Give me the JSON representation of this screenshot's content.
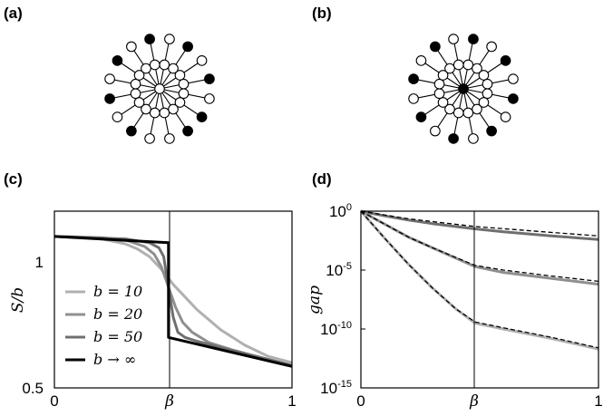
{
  "panels": {
    "a": {
      "label": "(a)",
      "filled_indices": [
        1,
        3,
        5,
        6,
        9,
        11,
        13,
        15
      ],
      "center_filled": false
    },
    "b": {
      "label": "(b)",
      "filled_indices": [
        0,
        2,
        4,
        6,
        8,
        10,
        12,
        14
      ],
      "center_filled": true
    },
    "c": {
      "label": "(c)"
    },
    "d": {
      "label": "(d)"
    }
  },
  "chart_data": [
    {
      "type": "line",
      "panel": "c",
      "xlabel": "β",
      "ylabel": "S/b",
      "xlim": [
        0,
        1
      ],
      "ylim": [
        0.5,
        1.2
      ],
      "x_ticks": [
        "0",
        "1"
      ],
      "y_ticks": [
        "0.5",
        "1"
      ],
      "x_mid_tick": "β",
      "transition_x": 0.48,
      "legend": [
        {
          "text": "b = 10",
          "color": "#b0b0b0"
        },
        {
          "text": "b = 20",
          "color": "#8f8f8f"
        },
        {
          "text": "b = 50",
          "color": "#6f6f6f"
        },
        {
          "text": "b → ∞",
          "color": "#000000"
        }
      ],
      "series": [
        {
          "name": "b = 10",
          "color": "#b0b0b0",
          "x": [
            0,
            0.1,
            0.2,
            0.3,
            0.35,
            0.4,
            0.45,
            0.5,
            0.55,
            0.6,
            0.7,
            0.8,
            0.9,
            1.0
          ],
          "y": [
            1.1,
            1.098,
            1.09,
            1.07,
            1.05,
            1.02,
            0.97,
            0.91,
            0.86,
            0.81,
            0.73,
            0.67,
            0.625,
            0.6
          ]
        },
        {
          "name": "b = 20",
          "color": "#8f8f8f",
          "x": [
            0,
            0.2,
            0.3,
            0.38,
            0.42,
            0.45,
            0.48,
            0.51,
            0.54,
            0.58,
            0.65,
            0.75,
            0.85,
            1.0
          ],
          "y": [
            1.1,
            1.095,
            1.085,
            1.06,
            1.03,
            0.98,
            0.9,
            0.82,
            0.76,
            0.72,
            0.68,
            0.65,
            0.625,
            0.59
          ]
        },
        {
          "name": "b = 50",
          "color": "#6f6f6f",
          "x": [
            0,
            0.3,
            0.4,
            0.44,
            0.46,
            0.48,
            0.5,
            0.52,
            0.55,
            0.6,
            0.7,
            0.85,
            1.0
          ],
          "y": [
            1.1,
            1.09,
            1.075,
            1.055,
            1.02,
            0.9,
            0.78,
            0.72,
            0.7,
            0.685,
            0.66,
            0.625,
            0.588
          ]
        },
        {
          "name": "b → ∞",
          "color": "#000000",
          "x": [
            0,
            0.48,
            0.48,
            1.0
          ],
          "y": [
            1.1,
            1.075,
            0.7,
            0.585
          ]
        }
      ]
    },
    {
      "type": "line",
      "panel": "d",
      "xlabel": "β",
      "ylabel": "gap",
      "yscale": "log",
      "xlim": [
        0,
        1
      ],
      "ylim": [
        -15,
        0
      ],
      "x_ticks": [
        "0",
        "1"
      ],
      "x_mid_tick": "β",
      "y_ticks": [
        {
          "base": "10",
          "exp": "0",
          "value": 0
        },
        {
          "base": "10",
          "exp": "-5",
          "value": -5
        },
        {
          "base": "10",
          "exp": "-10",
          "value": -10
        },
        {
          "base": "10",
          "exp": "-15",
          "value": -15
        }
      ],
      "transition_x": 0.48,
      "series": [
        {
          "color": "#6f6f6f",
          "x": [
            0,
            0.1,
            0.2,
            0.3,
            0.48,
            0.6,
            0.8,
            1.0
          ],
          "y": [
            0,
            -0.4,
            -0.75,
            -1.05,
            -1.5,
            -1.75,
            -2.1,
            -2.4
          ]
        },
        {
          "color": "#8f8f8f",
          "x": [
            0,
            0.1,
            0.2,
            0.3,
            0.48,
            0.6,
            0.8,
            1.0
          ],
          "y": [
            0,
            -1.1,
            -2.2,
            -3.1,
            -4.7,
            -5.2,
            -5.7,
            -6.2
          ]
        },
        {
          "color": "#b0b0b0",
          "x": [
            0,
            0.1,
            0.2,
            0.3,
            0.4,
            0.48,
            0.6,
            0.8,
            1.0
          ],
          "y": [
            0,
            -2.3,
            -4.5,
            -6.5,
            -8.3,
            -9.5,
            -10.0,
            -10.8,
            -11.7
          ]
        }
      ],
      "dashed_series": [
        {
          "color": "#000000",
          "x": [
            0,
            0.2,
            0.48,
            0.8,
            1.0
          ],
          "y": [
            0,
            -0.65,
            -1.3,
            -1.8,
            -2.1
          ]
        },
        {
          "color": "#000000",
          "x": [
            0,
            0.1,
            0.2,
            0.3,
            0.48,
            0.6,
            0.8,
            1.0
          ],
          "y": [
            0,
            -1.1,
            -2.2,
            -3.1,
            -4.6,
            -5.0,
            -5.5,
            -5.95
          ]
        },
        {
          "color": "#000000",
          "x": [
            0,
            0.1,
            0.2,
            0.3,
            0.4,
            0.48,
            0.6,
            0.8,
            1.0
          ],
          "y": [
            0,
            -2.3,
            -4.5,
            -6.5,
            -8.3,
            -9.4,
            -9.9,
            -10.7,
            -11.6
          ]
        }
      ]
    }
  ]
}
